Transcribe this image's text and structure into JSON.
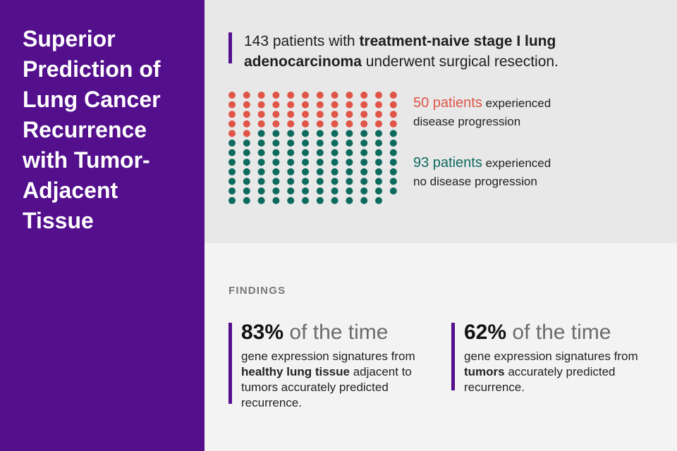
{
  "sidebar": {
    "title": "Superior\nPrediction of\nLung Cancer\nRecurrence\nwith Tumor-\nAdjacent\nTissue"
  },
  "intro": {
    "part1": "143 patients with ",
    "bold": "treatment-naive stage I lung adenocarcinoma",
    "part2": " underwent surgical resection."
  },
  "patient_groups": [
    {
      "count_text": "50 patients",
      "line1": " experienced",
      "line2": "disease progression",
      "count": 50,
      "color": "#e05548"
    },
    {
      "count_text": "93 patients",
      "line1": " experienced",
      "line2": "no disease progression",
      "count": 93,
      "color": "#0d6b5e"
    }
  ],
  "findings": {
    "heading": "FINDINGS",
    "items": [
      {
        "pct": "83%",
        "suffix": " of the time",
        "pre": "gene expression signatures from ",
        "bold": "healthy lung tissue",
        "post": " adjacent to tumors accurately predicted recurrence."
      },
      {
        "pct": "62%",
        "suffix": " of the time",
        "pre": "gene expression signatures from ",
        "bold": "tumors",
        "post": " accurately predicted recurrence."
      }
    ]
  }
}
